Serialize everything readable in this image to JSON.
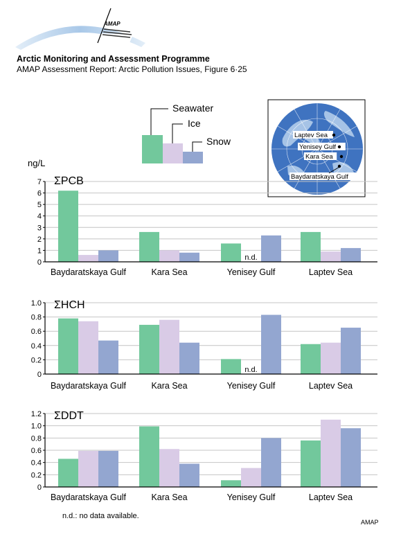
{
  "header": {
    "org": "Arctic Monitoring and Assessment Programme",
    "report": "AMAP Assessment Report: Arctic Pollution Issues, Figure 6·25",
    "logo_text": "AMAP"
  },
  "legend": {
    "items": [
      {
        "name": "Seawater",
        "color": "#72c89c"
      },
      {
        "name": "Ice",
        "color": "#d9cbe6"
      },
      {
        "name": "Snow",
        "color": "#93a6d0"
      }
    ]
  },
  "map": {
    "labels": [
      "Laptev Sea",
      "Yenisey Gulf",
      "Kara Sea",
      "Baydaratskaya Gulf"
    ]
  },
  "chart_data": [
    {
      "type": "bar",
      "title": "ΣPCB",
      "ylabel": "ng/L",
      "categories": [
        "Baydaratskaya Gulf",
        "Kara Sea",
        "Yenisey Gulf",
        "Laptev Sea"
      ],
      "ylim": [
        0,
        7
      ],
      "yticks": [
        "0",
        "1",
        "2",
        "3",
        "4",
        "5",
        "6",
        "7"
      ],
      "series": [
        {
          "name": "Seawater",
          "values": [
            6.2,
            2.6,
            1.6,
            2.6
          ]
        },
        {
          "name": "Ice",
          "values": [
            0.6,
            1.0,
            null,
            0.9
          ]
        },
        {
          "name": "Snow",
          "values": [
            1.0,
            0.8,
            2.3,
            1.2
          ]
        }
      ],
      "annotations": [
        {
          "category": "Yenisey Gulf",
          "series": "Ice",
          "text": "n.d."
        }
      ]
    },
    {
      "type": "bar",
      "title": "ΣHCH",
      "categories": [
        "Baydaratskaya Gulf",
        "Kara Sea",
        "Yenisey Gulf",
        "Laptev Sea"
      ],
      "ylim": [
        0,
        1.0
      ],
      "yticks": [
        "0",
        "0.2",
        "0.4",
        "0.6",
        "0.8",
        "1.0"
      ],
      "series": [
        {
          "name": "Seawater",
          "values": [
            0.78,
            0.69,
            0.21,
            0.42
          ]
        },
        {
          "name": "Ice",
          "values": [
            0.74,
            0.76,
            null,
            0.44
          ]
        },
        {
          "name": "Snow",
          "values": [
            0.47,
            0.44,
            0.83,
            0.65
          ]
        }
      ],
      "annotations": [
        {
          "category": "Yenisey Gulf",
          "series": "Ice",
          "text": "n.d."
        }
      ]
    },
    {
      "type": "bar",
      "title": "ΣDDT",
      "categories": [
        "Baydaratskaya Gulf",
        "Kara Sea",
        "Yenisey Gulf",
        "Laptev Sea"
      ],
      "ylim": [
        0,
        1.2
      ],
      "yticks": [
        "0",
        "0.2",
        "0.4",
        "0.6",
        "0.8",
        "1.0",
        "1.2"
      ],
      "series": [
        {
          "name": "Seawater",
          "values": [
            0.46,
            0.99,
            0.11,
            0.76
          ]
        },
        {
          "name": "Ice",
          "values": [
            0.59,
            0.62,
            0.31,
            1.1
          ]
        },
        {
          "name": "Snow",
          "values": [
            0.59,
            0.38,
            0.8,
            0.96
          ]
        }
      ],
      "annotations": []
    }
  ],
  "footnote": "n.d.: no data available.",
  "credit": "AMAP"
}
